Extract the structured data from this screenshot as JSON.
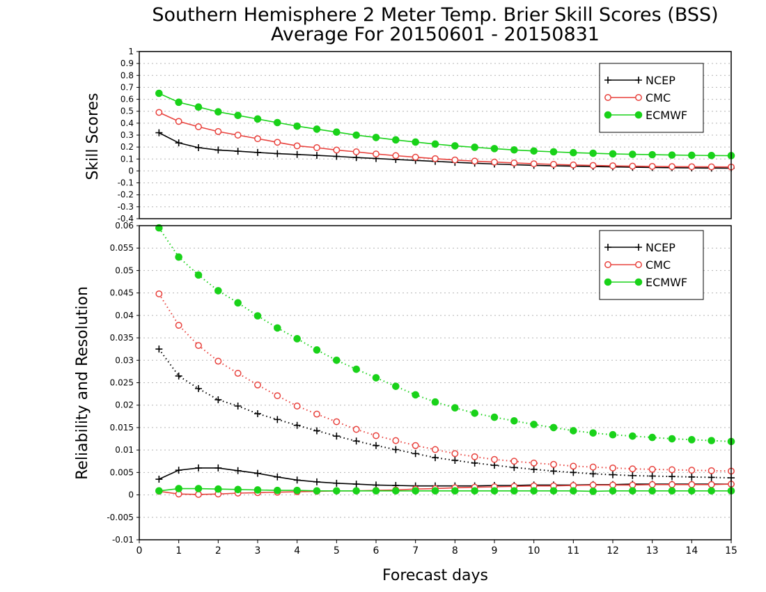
{
  "figure": {
    "title_line1": "Southern Hemisphere 2 Meter Temp. Brier Skill Scores (BSS)",
    "title_line2": "Average For 20150601 - 20150831",
    "xlabel": "Forecast days"
  },
  "colors": {
    "NCEP": "#000000",
    "CMC": "#e8413c",
    "ECMWF": "#19d219",
    "grid": "#b4b4b4"
  },
  "chart_data": [
    {
      "type": "line",
      "name": "Skill Scores panel",
      "ylabel": "Skill Scores",
      "xlim": [
        0,
        15
      ],
      "ylim": [
        -0.4,
        1
      ],
      "yticks": [
        "-0.4",
        "-0.3",
        "-0.2",
        "-0.1",
        "0",
        "0.1",
        "0.2",
        "0.3",
        "0.4",
        "0.5",
        "0.6",
        "0.7",
        "0.8",
        "0.9",
        "1"
      ],
      "grid": true,
      "legend_position": "top-right",
      "legend": [
        "NCEP",
        "CMC",
        "ECMWF"
      ],
      "x": [
        0.5,
        1,
        1.5,
        2,
        2.5,
        3,
        3.5,
        4,
        4.5,
        5,
        5.5,
        6,
        6.5,
        7,
        7.5,
        8,
        8.5,
        9,
        9.5,
        10,
        10.5,
        11,
        11.5,
        12,
        12.5,
        13,
        13.5,
        14,
        14.5,
        15
      ],
      "series": [
        {
          "name": "NCEP",
          "marker": "plus",
          "style": "solid",
          "values": [
            0.32,
            0.235,
            0.195,
            0.175,
            0.165,
            0.155,
            0.145,
            0.138,
            0.13,
            0.122,
            0.112,
            0.104,
            0.096,
            0.088,
            0.08,
            0.072,
            0.065,
            0.058,
            0.052,
            0.047,
            0.043,
            0.04,
            0.037,
            0.034,
            0.031,
            0.029,
            0.027,
            0.025,
            0.024,
            0.023
          ]
        },
        {
          "name": "CMC",
          "marker": "open-circle",
          "style": "solid",
          "values": [
            0.49,
            0.415,
            0.37,
            0.33,
            0.3,
            0.27,
            0.24,
            0.21,
            0.195,
            0.175,
            0.16,
            0.142,
            0.128,
            0.115,
            0.103,
            0.092,
            0.082,
            0.074,
            0.067,
            0.06,
            0.055,
            0.05,
            0.046,
            0.043,
            0.04,
            0.038,
            0.036,
            0.035,
            0.034,
            0.033
          ]
        },
        {
          "name": "ECMWF",
          "marker": "filled-circle",
          "style": "solid",
          "values": [
            0.65,
            0.575,
            0.535,
            0.495,
            0.465,
            0.435,
            0.405,
            0.375,
            0.35,
            0.325,
            0.3,
            0.28,
            0.26,
            0.242,
            0.225,
            0.21,
            0.198,
            0.187,
            0.176,
            0.167,
            0.16,
            0.153,
            0.148,
            0.143,
            0.139,
            0.136,
            0.133,
            0.131,
            0.129,
            0.128
          ]
        }
      ]
    },
    {
      "type": "line",
      "name": "Reliability and Resolution panel",
      "ylabel": "Reliability and Resolution",
      "xlim": [
        0,
        15
      ],
      "ylim": [
        -0.01,
        0.06
      ],
      "yticks": [
        "-0.01",
        "-0.005",
        "0",
        "0.005",
        "0.01",
        "0.015",
        "0.02",
        "0.025",
        "0.03",
        "0.035",
        "0.04",
        "0.045",
        "0.05",
        "0.055",
        "0.06"
      ],
      "xticks": [
        "0",
        "1",
        "2",
        "3",
        "4",
        "5",
        "6",
        "7",
        "8",
        "9",
        "10",
        "11",
        "12",
        "13",
        "14",
        "15"
      ],
      "grid": true,
      "legend_position": "top-right",
      "legend": [
        "NCEP",
        "CMC",
        "ECMWF"
      ],
      "x": [
        0.5,
        1,
        1.5,
        2,
        2.5,
        3,
        3.5,
        4,
        4.5,
        5,
        5.5,
        6,
        6.5,
        7,
        7.5,
        8,
        8.5,
        9,
        9.5,
        10,
        10.5,
        11,
        11.5,
        12,
        12.5,
        13,
        13.5,
        14,
        14.5,
        15
      ],
      "series": [
        {
          "name": "NCEP",
          "measure": "resolution",
          "marker": "plus",
          "style": "dotted",
          "values": [
            0.0325,
            0.0265,
            0.0237,
            0.0212,
            0.0198,
            0.0181,
            0.0168,
            0.0155,
            0.0143,
            0.0131,
            0.012,
            0.011,
            0.0101,
            0.0092,
            0.0083,
            0.0077,
            0.0071,
            0.0066,
            0.0061,
            0.0057,
            0.0053,
            0.005,
            0.0047,
            0.0045,
            0.0043,
            0.0042,
            0.0041,
            0.004,
            0.0039,
            0.0038
          ]
        },
        {
          "name": "CMC",
          "measure": "resolution",
          "marker": "open-circle",
          "style": "dotted",
          "values": [
            0.0448,
            0.0378,
            0.0333,
            0.0298,
            0.0271,
            0.0245,
            0.0221,
            0.0198,
            0.018,
            0.0163,
            0.0146,
            0.0132,
            0.0121,
            0.011,
            0.0101,
            0.0092,
            0.0085,
            0.0079,
            0.0075,
            0.0071,
            0.0068,
            0.0064,
            0.0062,
            0.006,
            0.0058,
            0.0057,
            0.0056,
            0.0055,
            0.0054,
            0.0053
          ]
        },
        {
          "name": "ECMWF",
          "measure": "resolution",
          "marker": "filled-circle",
          "style": "dotted",
          "values": [
            0.0595,
            0.053,
            0.049,
            0.0455,
            0.0428,
            0.0399,
            0.0372,
            0.0348,
            0.0323,
            0.03,
            0.028,
            0.0261,
            0.0242,
            0.0223,
            0.0207,
            0.0194,
            0.0182,
            0.0173,
            0.0165,
            0.0157,
            0.015,
            0.0143,
            0.0138,
            0.0134,
            0.0131,
            0.0128,
            0.0125,
            0.0123,
            0.0121,
            0.0119
          ]
        },
        {
          "name": "NCEP",
          "measure": "reliability",
          "marker": "plus",
          "style": "solid",
          "values": [
            0.0035,
            0.0055,
            0.006,
            0.006,
            0.0054,
            0.0048,
            0.004,
            0.0033,
            0.0029,
            0.0026,
            0.0024,
            0.0022,
            0.0021,
            0.002,
            0.002,
            0.002,
            0.002,
            0.0021,
            0.0021,
            0.0022,
            0.0022,
            0.0022,
            0.0023,
            0.0023,
            0.0024,
            0.0024,
            0.0024,
            0.0024,
            0.0024,
            0.0024
          ]
        },
        {
          "name": "CMC",
          "measure": "reliability",
          "marker": "open-circle",
          "style": "solid",
          "values": [
            0.0008,
            0.0002,
            0.0001,
            0.0002,
            0.0004,
            0.0005,
            0.0006,
            0.0007,
            0.0008,
            0.0009,
            0.0009,
            0.001,
            0.0011,
            0.0013,
            0.0014,
            0.0016,
            0.0017,
            0.0018,
            0.0019,
            0.002,
            0.002,
            0.0021,
            0.0022,
            0.0022,
            0.0022,
            0.0023,
            0.0023,
            0.0023,
            0.0023,
            0.0024
          ]
        },
        {
          "name": "ECMWF",
          "measure": "reliability",
          "marker": "filled-circle",
          "style": "solid",
          "values": [
            0.0009,
            0.0014,
            0.0014,
            0.0013,
            0.0012,
            0.0011,
            0.001,
            0.001,
            0.0009,
            0.0009,
            0.0009,
            0.0009,
            0.0009,
            0.0009,
            0.0009,
            0.0009,
            0.0009,
            0.0009,
            0.0009,
            0.0009,
            0.0009,
            0.0009,
            0.0008,
            0.0009,
            0.0009,
            0.0009,
            0.0009,
            0.0009,
            0.0009,
            0.0009
          ]
        }
      ]
    }
  ]
}
